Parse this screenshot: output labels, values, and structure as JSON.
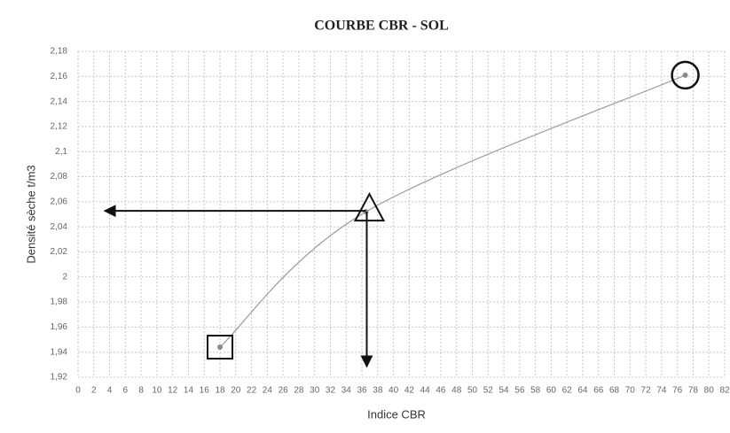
{
  "chart_data": {
    "type": "line",
    "title": "COURBE CBR - SOL",
    "x_label": "Indice CBR",
    "y_label": "Densité sèche t/m3",
    "series": [
      {
        "color": "#9a9a9a",
        "x": [
          18,
          36.5,
          77
        ],
        "values": [
          1.944,
          2.052,
          2.161
        ]
      }
    ],
    "xlim": [
      0,
      82
    ],
    "xticks": [
      0,
      2,
      4,
      6,
      8,
      10,
      12,
      14,
      16,
      18,
      20,
      22,
      24,
      26,
      28,
      30,
      32,
      34,
      36,
      38,
      40,
      42,
      44,
      46,
      48,
      50,
      52,
      54,
      56,
      58,
      60,
      62,
      64,
      66,
      68,
      70,
      72,
      74,
      76,
      78,
      80,
      82
    ],
    "ylim": [
      1.92,
      2.18
    ],
    "yticks": [
      {
        "value": 1.92,
        "label": "1,92"
      },
      {
        "value": 1.94,
        "label": "1,94"
      },
      {
        "value": 1.96,
        "label": "1,96"
      },
      {
        "value": 1.98,
        "label": "1,98"
      },
      2,
      {
        "value": 2.02,
        "label": "2,02"
      },
      {
        "value": 2.04,
        "label": "2,04"
      },
      {
        "value": 2.06,
        "label": "2,06"
      },
      {
        "value": 2.08,
        "label": "2,08"
      },
      {
        "value": 2.1,
        "label": "2,1"
      },
      {
        "value": 2.12,
        "label": "2,12"
      },
      {
        "value": 2.14,
        "label": "2,14"
      },
      {
        "value": 2.16,
        "label": "2,16"
      },
      {
        "value": 2.18,
        "label": "2,18"
      }
    ],
    "grid": true
  }
}
